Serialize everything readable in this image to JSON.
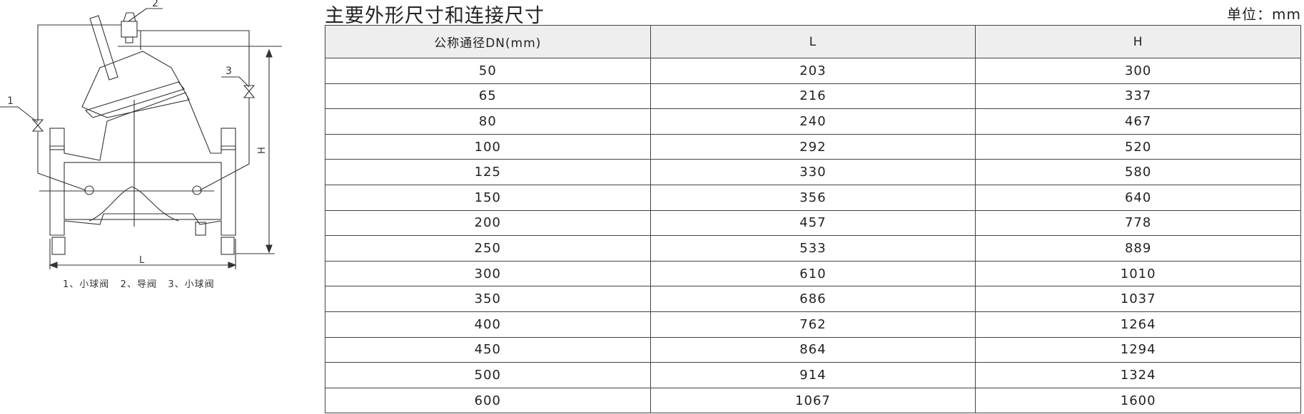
{
  "drawing": {
    "callouts": [
      "1",
      "2",
      "3"
    ],
    "dimensions": {
      "length": "L",
      "height": "H"
    },
    "caption": "1、小球阀   2、导阀   3、小球阀"
  },
  "title": "主要外形尺寸和连接尺寸",
  "unit": "单位：mm",
  "table": {
    "headers": [
      "公称通径DN(mm)",
      "L",
      "H"
    ],
    "rows": [
      [
        "50",
        "203",
        "300"
      ],
      [
        "65",
        "216",
        "337"
      ],
      [
        "80",
        "240",
        "467"
      ],
      [
        "100",
        "292",
        "520"
      ],
      [
        "125",
        "330",
        "580"
      ],
      [
        "150",
        "356",
        "640"
      ],
      [
        "200",
        "457",
        "778"
      ],
      [
        "250",
        "533",
        "889"
      ],
      [
        "300",
        "610",
        "1010"
      ],
      [
        "350",
        "686",
        "1037"
      ],
      [
        "400",
        "762",
        "1264"
      ],
      [
        "450",
        "864",
        "1294"
      ],
      [
        "500",
        "914",
        "1324"
      ],
      [
        "600",
        "1067",
        "1600"
      ]
    ]
  }
}
